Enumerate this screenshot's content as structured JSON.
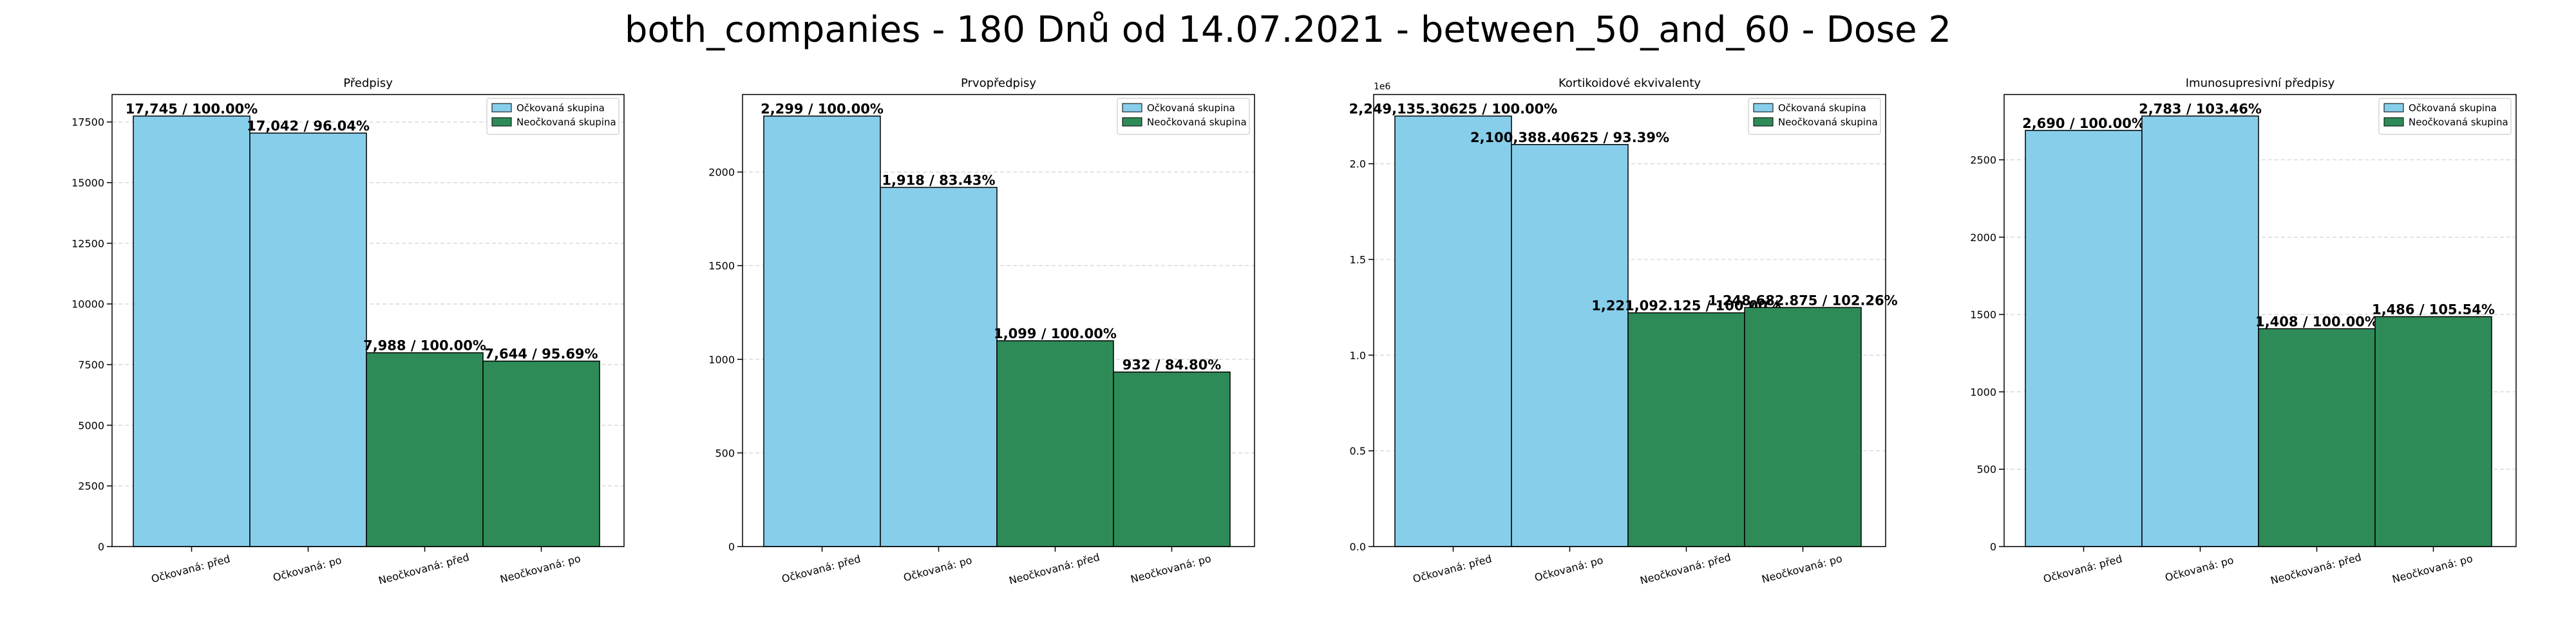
{
  "figure": {
    "title": "both_companies - 180 Dnů od 14.07.2021 - between_50_and_60 - Dose 2"
  },
  "colors": {
    "vaccinated": "#87ceeb",
    "unvaccinated": "#2e8b57",
    "edge": "#000000",
    "grid": "#d9d9d9"
  },
  "chart_data": [
    {
      "type": "bar",
      "title": "Předpisy",
      "categories": [
        "Očkovaná: před",
        "Očkovaná: po",
        "Neočkovaná: před",
        "Neočkovaná: po"
      ],
      "values": [
        17745,
        17042,
        7988,
        7644
      ],
      "bar_groups": [
        "vaccinated",
        "vaccinated",
        "unvaccinated",
        "unvaccinated"
      ],
      "data_labels": [
        "17,745 / 100.00%",
        "17,042 / 96.04%",
        "7,988 / 100.00%",
        "7,644 / 95.69%"
      ],
      "ylim": [
        0,
        18632
      ],
      "yticks": [
        0,
        2500,
        5000,
        7500,
        10000,
        12500,
        15000,
        17500
      ],
      "ytick_labels": [
        "0",
        "2500",
        "5000",
        "7500",
        "10000",
        "12500",
        "15000",
        "17500"
      ],
      "scale_label": "",
      "legend": [
        "Očkovaná skupina",
        "Neočkovaná skupina"
      ],
      "legend_position": "top-right",
      "grid": true
    },
    {
      "type": "bar",
      "title": "Prvopředpisy",
      "categories": [
        "Očkovaná: před",
        "Očkovaná: po",
        "Neočkovaná: před",
        "Neočkovaná: po"
      ],
      "values": [
        2299,
        1918,
        1099,
        932
      ],
      "bar_groups": [
        "vaccinated",
        "vaccinated",
        "unvaccinated",
        "unvaccinated"
      ],
      "data_labels": [
        "2,299 / 100.00%",
        "1,918 / 83.43%",
        "1,099 / 100.00%",
        "932 / 84.80%"
      ],
      "ylim": [
        0,
        2414
      ],
      "yticks": [
        0,
        500,
        1000,
        1500,
        2000
      ],
      "ytick_labels": [
        "0",
        "500",
        "1000",
        "1500",
        "2000"
      ],
      "scale_label": "",
      "legend": [
        "Očkovaná skupina",
        "Neočkovaná skupina"
      ],
      "legend_position": "top-right",
      "grid": true
    },
    {
      "type": "bar",
      "title": "Kortikoidové ekvivalenty",
      "categories": [
        "Očkovaná: před",
        "Očkovaná: po",
        "Neočkovaná: před",
        "Neočkovaná: po"
      ],
      "values": [
        2249135.30625,
        2100388.40625,
        1221092.125,
        1248682.875
      ],
      "bar_groups": [
        "vaccinated",
        "vaccinated",
        "unvaccinated",
        "unvaccinated"
      ],
      "data_labels": [
        "2,249,135.30625 / 100.00%",
        "2,100,388.40625 / 93.39%",
        "1,221,092.125 / 100.00%",
        "1,248,682.875 / 102.26%"
      ],
      "ylim": [
        0,
        2361592
      ],
      "yticks": [
        0,
        500000,
        1000000,
        1500000,
        2000000
      ],
      "ytick_labels": [
        "0.0",
        "0.5",
        "1.0",
        "1.5",
        "2.0"
      ],
      "scale_label": "1e6",
      "legend": [
        "Očkovaná skupina",
        "Neočkovaná skupina"
      ],
      "legend_position": "top-right",
      "grid": true
    },
    {
      "type": "bar",
      "title": "Imunosupresivní předpisy",
      "categories": [
        "Očkovaná: před",
        "Očkovaná: po",
        "Neočkovaná: před",
        "Neočkovaná: po"
      ],
      "values": [
        2690,
        2783,
        1408,
        1486
      ],
      "bar_groups": [
        "vaccinated",
        "vaccinated",
        "unvaccinated",
        "unvaccinated"
      ],
      "data_labels": [
        "2,690 / 100.00%",
        "2,783 / 103.46%",
        "1,408 / 100.00%",
        "1,486 / 105.54%"
      ],
      "ylim": [
        0,
        2922
      ],
      "yticks": [
        0,
        500,
        1000,
        1500,
        2000,
        2500
      ],
      "ytick_labels": [
        "0",
        "500",
        "1000",
        "1500",
        "2000",
        "2500"
      ],
      "scale_label": "",
      "legend": [
        "Očkovaná skupina",
        "Neočkovaná skupina"
      ],
      "legend_position": "top-right",
      "grid": true
    }
  ]
}
